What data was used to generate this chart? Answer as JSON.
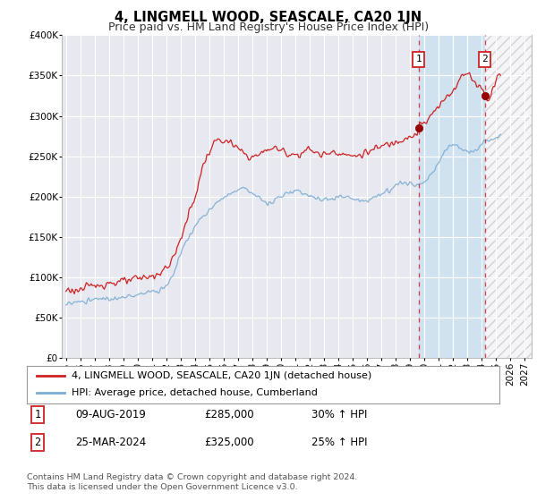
{
  "title": "4, LINGMELL WOOD, SEASCALE, CA20 1JN",
  "subtitle": "Price paid vs. HM Land Registry's House Price Index (HPI)",
  "ylim": [
    0,
    400000
  ],
  "yticks": [
    0,
    50000,
    100000,
    150000,
    200000,
    250000,
    300000,
    350000,
    400000
  ],
  "xlim_start": 1994.7,
  "xlim_end": 2027.5,
  "bg_color": "#e8e8f0",
  "grid_color": "#ffffff",
  "red_color": "#cc2222",
  "blue_color": "#7aadd4",
  "blue_shade_color": "#cce0f0",
  "hatch_color": "#cccccc",
  "marker1_date": 2019.608,
  "marker1_value": 285000,
  "marker2_date": 2024.23,
  "marker2_value": 325000,
  "legend_line1": "4, LINGMELL WOOD, SEASCALE, CA20 1JN (detached house)",
  "legend_line2": "HPI: Average price, detached house, Cumberland",
  "table_row1": [
    "1",
    "09-AUG-2019",
    "£285,000",
    "30% ↑ HPI"
  ],
  "table_row2": [
    "2",
    "25-MAR-2024",
    "£325,000",
    "25% ↑ HPI"
  ],
  "footer1": "Contains HM Land Registry data © Crown copyright and database right 2024.",
  "footer2": "This data is licensed under the Open Government Licence v3.0.",
  "title_fontsize": 10.5,
  "subtitle_fontsize": 9,
  "axis_fontsize": 7.5,
  "legend_fontsize": 8,
  "table_fontsize": 8.5,
  "footer_fontsize": 6.8
}
